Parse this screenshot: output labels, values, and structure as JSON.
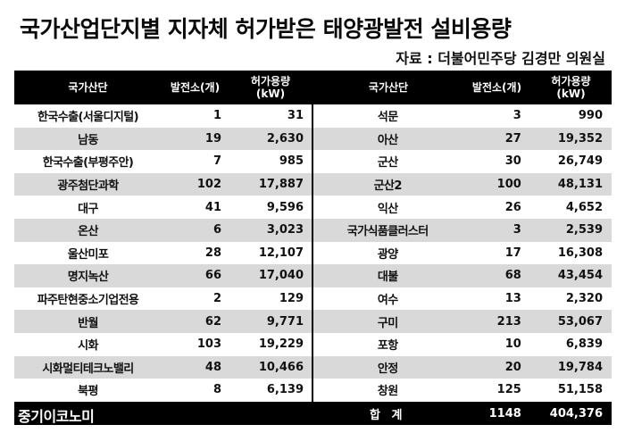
{
  "title": "국가산업단지별 지자체 허가받은 태양광발전 설비용량",
  "source": "자료 : 더불어민주당 김경만 의원실",
  "headers": {
    "complex": "국가산단",
    "plants": "발전소(개)",
    "capacity_line1": "허가용량",
    "capacity_line2": "(kW)"
  },
  "left_rows": [
    {
      "name": "한국수출(서울디지털)",
      "plants": "1",
      "capacity": "31"
    },
    {
      "name": "남동",
      "plants": "19",
      "capacity": "2,630"
    },
    {
      "name": "한국수출(부평주안)",
      "plants": "7",
      "capacity": "985"
    },
    {
      "name": "광주첨단과학",
      "plants": "102",
      "capacity": "17,887"
    },
    {
      "name": "대구",
      "plants": "41",
      "capacity": "9,596"
    },
    {
      "name": "온산",
      "plants": "6",
      "capacity": "3,023"
    },
    {
      "name": "울산미포",
      "plants": "28",
      "capacity": "12,107"
    },
    {
      "name": "명지녹산",
      "plants": "66",
      "capacity": "17,040"
    },
    {
      "name": "파주탄현중소기업전용",
      "plants": "2",
      "capacity": "129"
    },
    {
      "name": "반월",
      "plants": "62",
      "capacity": "9,771"
    },
    {
      "name": "시화",
      "plants": "103",
      "capacity": "19,229"
    },
    {
      "name": "시화멀티테크노밸리",
      "plants": "48",
      "capacity": "10,466"
    },
    {
      "name": "북평",
      "plants": "8",
      "capacity": "6,139"
    }
  ],
  "right_rows": [
    {
      "name": "석문",
      "plants": "3",
      "capacity": "990"
    },
    {
      "name": "아산",
      "plants": "27",
      "capacity": "19,352"
    },
    {
      "name": "군산",
      "plants": "30",
      "capacity": "26,749"
    },
    {
      "name": "군산2",
      "plants": "100",
      "capacity": "48,131"
    },
    {
      "name": "익산",
      "plants": "26",
      "capacity": "4,652"
    },
    {
      "name": "국가식품클러스터",
      "plants": "3",
      "capacity": "2,539"
    },
    {
      "name": "광양",
      "plants": "17",
      "capacity": "16,308"
    },
    {
      "name": "대불",
      "plants": "68",
      "capacity": "43,454"
    },
    {
      "name": "여수",
      "plants": "13",
      "capacity": "2,320"
    },
    {
      "name": "구미",
      "plants": "213",
      "capacity": "53,067"
    },
    {
      "name": "포항",
      "plants": "10",
      "capacity": "6,839"
    },
    {
      "name": "안정",
      "plants": "20",
      "capacity": "19,784"
    },
    {
      "name": "창원",
      "plants": "125",
      "capacity": "51,158"
    }
  ],
  "total": {
    "label": "합 계",
    "plants": "1148",
    "capacity": "404,376"
  },
  "brand": "중기이코노미",
  "colors": {
    "header_bg": "#000000",
    "stripe": "#d9d9d9",
    "text": "#111111"
  }
}
